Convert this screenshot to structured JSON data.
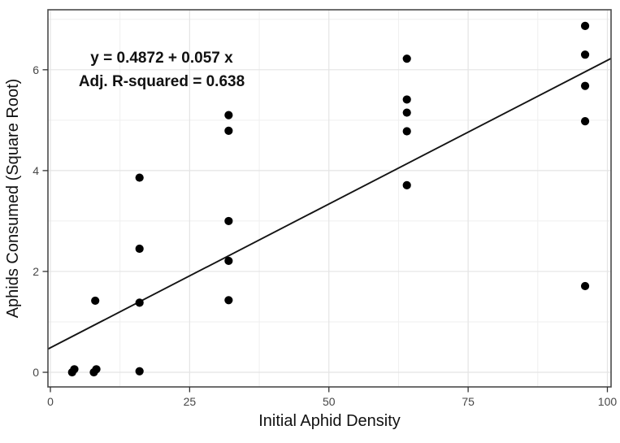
{
  "figure": {
    "background": "#ffffff"
  },
  "chart_data": {
    "type": "scatter",
    "title": "",
    "xlabel": "Initial Aphid Density",
    "ylabel": "Aphids Consumed (Square Root)",
    "x_ticks": [
      0,
      25,
      50,
      75,
      100
    ],
    "y_ticks": [
      0,
      2,
      4,
      6
    ],
    "x_minor_gridlines": [
      12.5,
      37.5,
      62.5,
      87.5
    ],
    "y_minor_gridlines": [
      1,
      3,
      5,
      7
    ],
    "xlim": [
      -0.44,
      100.66
    ],
    "ylim": [
      -0.29,
      7.19
    ],
    "grid": "major+minor",
    "legend": false,
    "points": [
      [
        3.9,
        0.0
      ],
      [
        4.3,
        0.06
      ],
      [
        7.8,
        0.0
      ],
      [
        8.25,
        0.06
      ],
      [
        8.05,
        1.42
      ],
      [
        16,
        0.02
      ],
      [
        16,
        1.38
      ],
      [
        16,
        2.45
      ],
      [
        16,
        3.86
      ],
      [
        32,
        1.43
      ],
      [
        32,
        2.21
      ],
      [
        32,
        3.0
      ],
      [
        32,
        4.79
      ],
      [
        32,
        5.1
      ],
      [
        64,
        3.71
      ],
      [
        64,
        4.78
      ],
      [
        64,
        5.15
      ],
      [
        64,
        5.41
      ],
      [
        64,
        6.22
      ],
      [
        96,
        1.71
      ],
      [
        96,
        4.98
      ],
      [
        96,
        5.68
      ],
      [
        96,
        6.3
      ],
      [
        96,
        6.87
      ]
    ],
    "regression_line": {
      "intercept": 0.4872,
      "slope": 0.057,
      "adj_r_squared": 0.638,
      "extent": "full-panel-width"
    },
    "annotation": {
      "line1": "y = 0.4872 + 0.057 x",
      "line2": "Adj. R-squared = 0.638"
    },
    "colors": {
      "point": "#000000",
      "regression": "#141414",
      "grid_major": "#e4e4e4",
      "grid_minor": "#efefef",
      "panel_border": "#4a4a4a",
      "tick_mark": "#333333",
      "tick_label": "#474747",
      "axis_title": "#111111",
      "annotation": "#111111",
      "background": "#ffffff"
    }
  }
}
